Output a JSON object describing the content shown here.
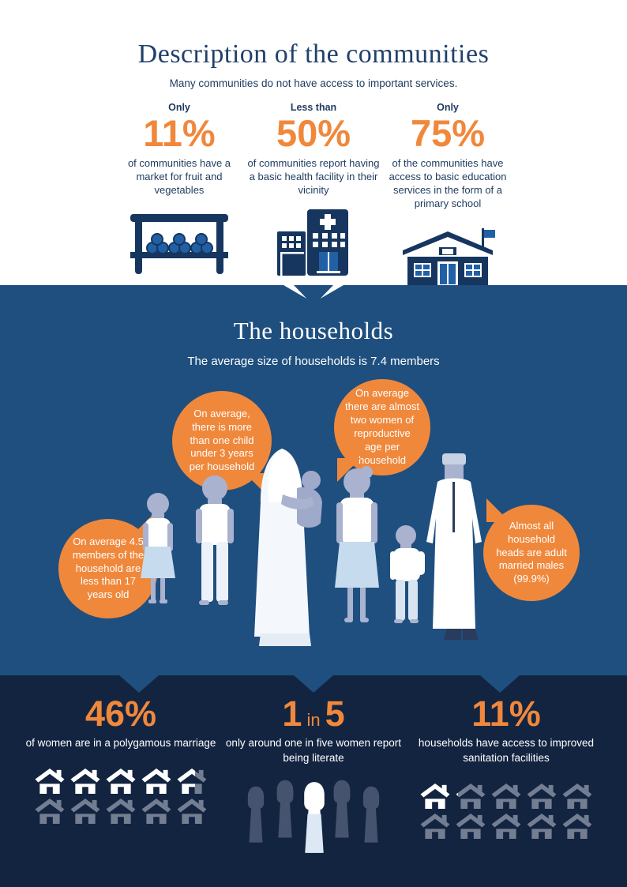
{
  "colors": {
    "orange": "#F0883C",
    "mid_blue": "#1E4F7F",
    "dark_navy": "#132441",
    "icon_navy": "#16365F"
  },
  "communities": {
    "title": "Description of the communities",
    "subtitle": "Many communities do not have access to important services.",
    "stats": [
      {
        "qualifier": "Only",
        "value": "11%",
        "description": "of communities have a market for fruit and vegetables",
        "icon": "market-stall-icon"
      },
      {
        "qualifier": "Less than",
        "value": "50%",
        "description": "of communities report having a basic health facility in their vicinity",
        "icon": "health-facility-icon"
      },
      {
        "qualifier": "Only",
        "value": "75%",
        "description": "of the communities have access to basic education services in the form of a primary school",
        "icon": "school-icon"
      }
    ]
  },
  "households": {
    "title": "The households",
    "subtitle": "The average size of households is 7.4 members",
    "bubbles": [
      {
        "text": "On average, there is more than one child under 3 years per household"
      },
      {
        "text": "On average there are almost two women of reproductive age per household"
      },
      {
        "text": "On average 4.5 members of the household are less than 17 years old"
      },
      {
        "text": "Almost all household heads are adult married males (99.9%)"
      }
    ]
  },
  "bottom_stats": [
    {
      "value": "46%",
      "description": "of women are in a polygamous marriage",
      "graphic": "houses",
      "highlighted": 4.6,
      "total": 10
    },
    {
      "value_big_left": "1",
      "value_small": "in",
      "value_big_right": "5",
      "description": "only around one in five women report being literate",
      "graphic": "women",
      "highlighted": 1,
      "total": 5
    },
    {
      "value": "11%",
      "description": "households have access to improved sanitation facilities",
      "graphic": "houses",
      "highlighted": 1.1,
      "total": 10
    }
  ]
}
